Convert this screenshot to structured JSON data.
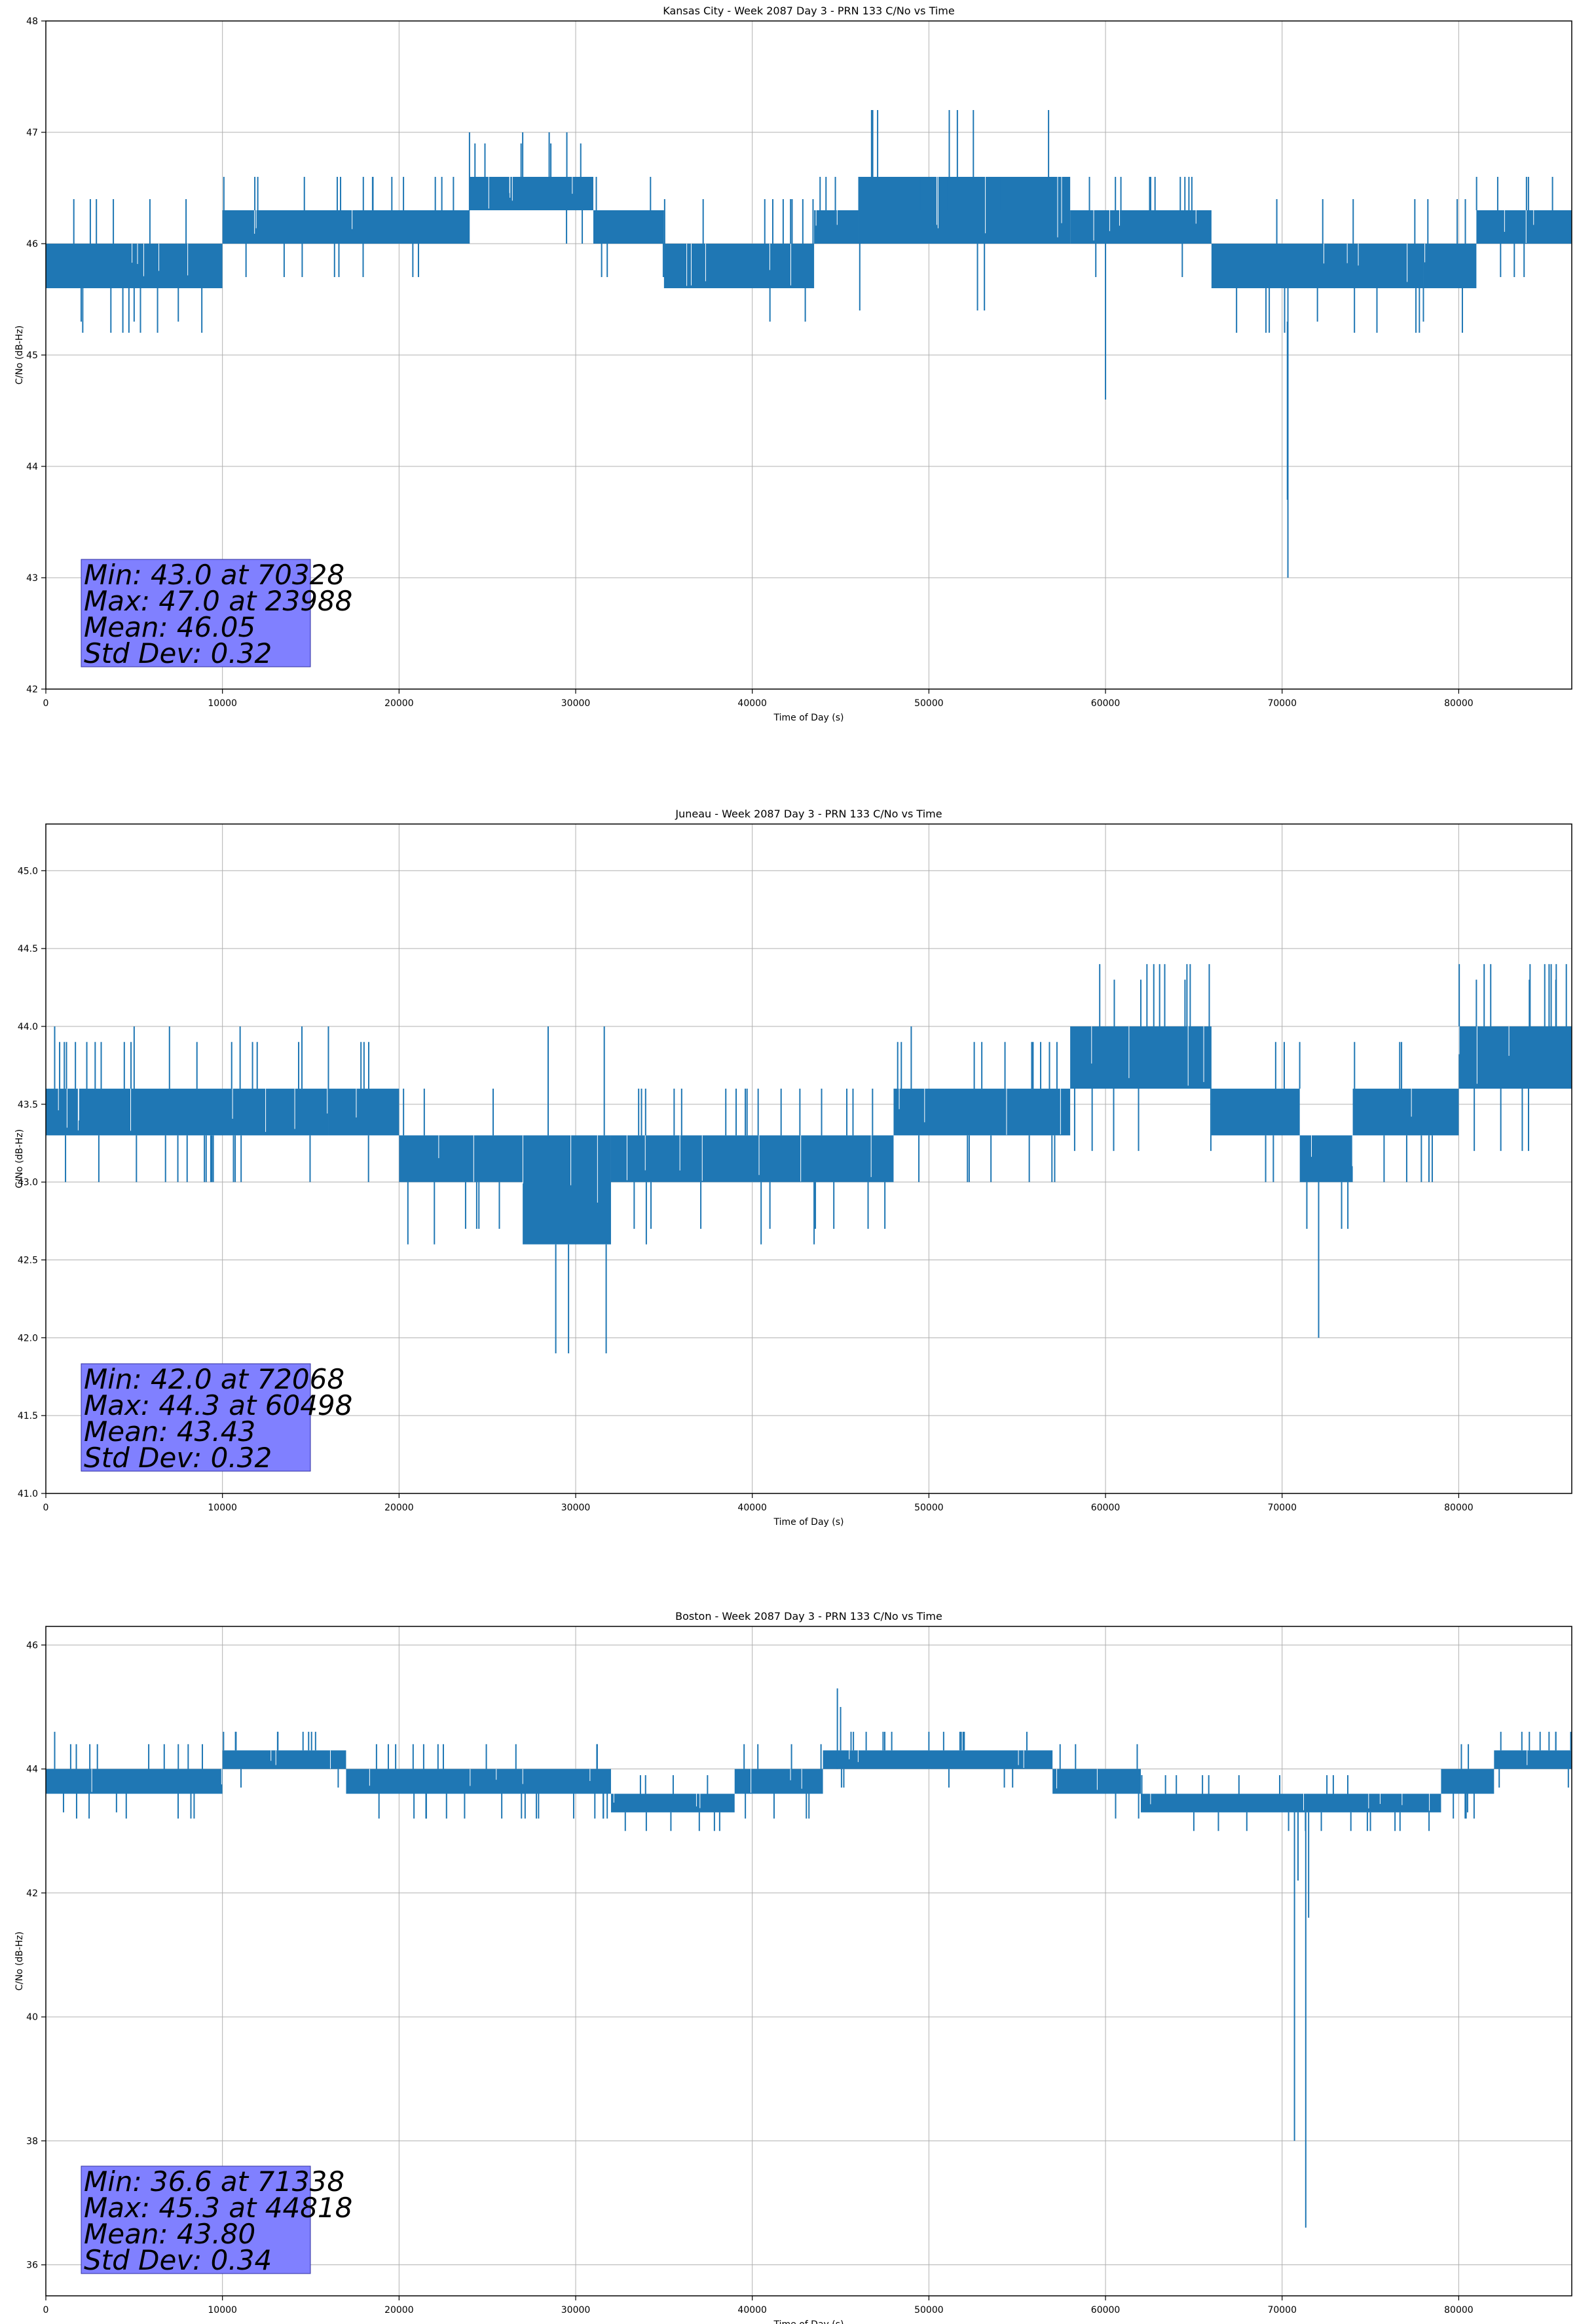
{
  "chart_data": [
    {
      "type": "line",
      "title": "Kansas City - Week 2087 Day 3 - PRN 133 C/No vs Time",
      "xlabel": "Time of Day (s)",
      "ylabel": "C/No (dB-Hz)",
      "xlim": [
        0,
        86400
      ],
      "ylim": [
        42,
        48
      ],
      "xticks": [
        0,
        10000,
        20000,
        30000,
        40000,
        50000,
        60000,
        70000,
        80000
      ],
      "yticks": [
        42,
        43,
        44,
        45,
        46,
        47,
        48
      ],
      "ytick_decimals": 0,
      "grid": true,
      "series_color": "#1f77b4",
      "band_segments": [
        [
          0,
          10000,
          45.6,
          46.0
        ],
        [
          10000,
          24000,
          46.0,
          46.3
        ],
        [
          24000,
          31000,
          46.3,
          46.6
        ],
        [
          31000,
          35000,
          46.0,
          46.3
        ],
        [
          35000,
          43500,
          45.6,
          46.0
        ],
        [
          43500,
          46000,
          46.0,
          46.3
        ],
        [
          46000,
          58000,
          46.0,
          46.6
        ],
        [
          58000,
          66000,
          46.0,
          46.3
        ],
        [
          66000,
          78000,
          45.6,
          46.0
        ],
        [
          78000,
          81000,
          45.6,
          46.0
        ],
        [
          81000,
          86400,
          46.0,
          46.3
        ]
      ],
      "spikes": [
        [
          23988,
          46.3,
          47.0
        ],
        [
          27000,
          46.6,
          47.0
        ],
        [
          28500,
          46.6,
          47.0
        ],
        [
          29500,
          46.6,
          47.0
        ],
        [
          60000,
          46.0,
          44.6
        ],
        [
          70328,
          45.6,
          43.0
        ],
        [
          70300,
          45.3,
          43.7
        ],
        [
          2000,
          45.6,
          45.3
        ],
        [
          5000,
          45.6,
          45.3
        ],
        [
          7500,
          45.6,
          45.3
        ],
        [
          41000,
          45.6,
          45.3
        ],
        [
          43000,
          45.6,
          45.3
        ],
        [
          72000,
          45.6,
          45.3
        ],
        [
          78000,
          45.6,
          45.3
        ],
        [
          12000,
          46.3,
          46.6
        ],
        [
          16500,
          46.3,
          46.6
        ],
        [
          18500,
          46.3,
          46.6
        ],
        [
          49500,
          46.3,
          46.6
        ],
        [
          51000,
          46.3,
          46.6
        ],
        [
          54000,
          46.3,
          46.6
        ],
        [
          57000,
          46.3,
          46.6
        ],
        [
          62500,
          46.3,
          46.6
        ]
      ],
      "stats_box": {
        "min": "Min: 43.0 at 70328",
        "max": "Max: 47.0 at 23988",
        "mean": "Mean: 46.05",
        "std": "Std Dev: 0.32"
      }
    },
    {
      "type": "line",
      "title": "Juneau - Week 2087 Day 3 - PRN 133 C/No vs Time",
      "xlabel": "Time of Day (s)",
      "ylabel": "C/No (dB-Hz)",
      "xlim": [
        0,
        86400
      ],
      "ylim": [
        41.0,
        45.3
      ],
      "xticks": [
        0,
        10000,
        20000,
        30000,
        40000,
        50000,
        60000,
        70000,
        80000
      ],
      "yticks": [
        41.0,
        41.5,
        42.0,
        42.5,
        43.0,
        43.5,
        44.0,
        44.5,
        45.0
      ],
      "ytick_decimals": 1,
      "grid": true,
      "series_color": "#1f77b4",
      "band_segments": [
        [
          0,
          16000,
          43.3,
          43.6
        ],
        [
          16000,
          20000,
          43.3,
          43.6
        ],
        [
          20000,
          27000,
          43.0,
          43.3
        ],
        [
          27000,
          32000,
          42.6,
          43.3
        ],
        [
          32000,
          48000,
          43.0,
          43.3
        ],
        [
          48000,
          58000,
          43.3,
          43.6
        ],
        [
          58000,
          66000,
          43.6,
          44.0
        ],
        [
          66000,
          71000,
          43.3,
          43.6
        ],
        [
          71000,
          74000,
          43.0,
          43.3
        ],
        [
          74000,
          80000,
          43.3,
          43.6
        ],
        [
          80000,
          86400,
          43.6,
          44.0
        ]
      ],
      "spikes": [
        [
          72068,
          43.0,
          42.0
        ],
        [
          60498,
          44.0,
          44.3
        ],
        [
          62000,
          44.0,
          44.3
        ],
        [
          64500,
          44.0,
          44.3
        ],
        [
          81000,
          44.0,
          44.3
        ],
        [
          84000,
          44.0,
          44.3
        ],
        [
          85500,
          44.0,
          44.3
        ],
        [
          500,
          43.6,
          44.0
        ],
        [
          5000,
          43.6,
          44.0
        ],
        [
          7000,
          43.6,
          44.0
        ],
        [
          11000,
          43.6,
          44.0
        ],
        [
          14500,
          43.6,
          44.0
        ],
        [
          16000,
          43.6,
          44.0
        ],
        [
          36000,
          43.3,
          43.6
        ],
        [
          49000,
          43.6,
          44.0
        ],
        [
          20500,
          43.0,
          42.6
        ],
        [
          22000,
          43.0,
          42.6
        ],
        [
          34000,
          43.0,
          42.6
        ],
        [
          40500,
          43.0,
          42.6
        ],
        [
          43500,
          43.0,
          42.6
        ],
        [
          78500,
          43.3,
          43.0
        ],
        [
          3000,
          43.3,
          43.0
        ],
        [
          8000,
          43.3,
          43.0
        ]
      ],
      "stats_box": {
        "min": "Min: 42.0 at 72068",
        "max": "Max: 44.3 at 60498",
        "mean": "Mean: 43.43",
        "std": "Std Dev: 0.32"
      }
    },
    {
      "type": "line",
      "title": "Boston - Week 2087 Day 3 - PRN 133 C/No vs Time",
      "xlabel": "Time of Day (s)",
      "ylabel": "C/No (dB-Hz)",
      "xlim": [
        0,
        86400
      ],
      "ylim": [
        35.5,
        46.3
      ],
      "xticks": [
        0,
        10000,
        20000,
        30000,
        40000,
        50000,
        60000,
        70000,
        80000
      ],
      "yticks": [
        36,
        38,
        40,
        42,
        44,
        46
      ],
      "ytick_decimals": 0,
      "grid": true,
      "series_color": "#1f77b4",
      "band_segments": [
        [
          0,
          10000,
          43.6,
          44.0
        ],
        [
          10000,
          17000,
          44.0,
          44.3
        ],
        [
          17000,
          32000,
          43.6,
          44.0
        ],
        [
          32000,
          39000,
          43.3,
          43.6
        ],
        [
          39000,
          44000,
          43.6,
          44.0
        ],
        [
          44000,
          57000,
          44.0,
          44.3
        ],
        [
          57000,
          62000,
          43.6,
          44.0
        ],
        [
          62000,
          79000,
          43.3,
          43.6
        ],
        [
          79000,
          82000,
          43.6,
          44.0
        ],
        [
          82000,
          86400,
          44.0,
          44.3
        ]
      ],
      "spikes": [
        [
          71338,
          43.3,
          36.6
        ],
        [
          70700,
          43.3,
          38.0
        ],
        [
          70900,
          43.3,
          42.2
        ],
        [
          71500,
          43.3,
          41.6
        ],
        [
          44818,
          44.0,
          45.3
        ],
        [
          45000,
          44.3,
          45.0
        ],
        [
          47500,
          44.3,
          44.6
        ],
        [
          50000,
          44.3,
          44.6
        ],
        [
          52000,
          44.3,
          44.6
        ],
        [
          500,
          44.0,
          44.6
        ],
        [
          84000,
          44.3,
          44.6
        ],
        [
          85500,
          44.3,
          44.6
        ],
        [
          1000,
          43.6,
          43.3
        ],
        [
          4000,
          43.6,
          43.3
        ],
        [
          34000,
          43.3,
          43.0
        ],
        [
          37000,
          43.3,
          43.0
        ],
        [
          65000,
          43.3,
          43.0
        ],
        [
          68000,
          43.3,
          43.0
        ],
        [
          75000,
          43.3,
          43.0
        ],
        [
          80500,
          43.6,
          43.3
        ]
      ],
      "stats_box": {
        "min": "Min: 36.6 at 71338",
        "max": "Max: 45.3 at 44818",
        "mean": "Mean: 43.80",
        "std": "Std Dev: 0.34"
      }
    }
  ],
  "colors": {
    "series": "#1f77b4",
    "grid": "#b0b0b0",
    "stats_fill": "#8080ff"
  }
}
